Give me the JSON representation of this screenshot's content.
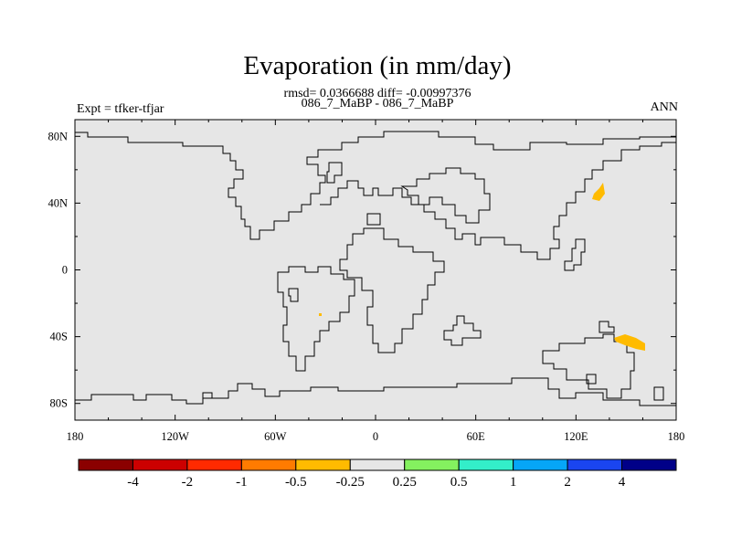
{
  "header": {
    "title": "Evaporation (in mm/day)",
    "stats": "rmsd= 0.0366688 diff= -0.00997376",
    "cases": "086_7_MaBP - 086_7_MaBP",
    "left_label": "Expt = tfker-tfjar",
    "right_label": "ANN"
  },
  "map": {
    "projection": "cylindrical equidistant",
    "lon_range": [
      -180,
      180
    ],
    "lat_range": [
      -90,
      90
    ],
    "x_ticks": [
      {
        "lon": -180,
        "label": "180"
      },
      {
        "lon": -120,
        "label": "120W"
      },
      {
        "lon": -60,
        "label": "60W"
      },
      {
        "lon": 0,
        "label": "0"
      },
      {
        "lon": 60,
        "label": "60E"
      },
      {
        "lon": 120,
        "label": "120E"
      },
      {
        "lon": 180,
        "label": "180"
      }
    ],
    "y_ticks": [
      {
        "lat": 80,
        "label": "80N"
      },
      {
        "lat": 40,
        "label": "40N"
      },
      {
        "lat": 0,
        "label": "0"
      },
      {
        "lat": -40,
        "label": "40S"
      },
      {
        "lat": -80,
        "label": "80S"
      }
    ],
    "background_color": "#e6e6e6",
    "coastline_color": "#000000",
    "highlight_regions": [
      {
        "color": "#ffbb00",
        "value_bin": "-0.5 to -0.25",
        "area": "near 135E, 45N"
      },
      {
        "color": "#ffbb00",
        "value_bin": "-0.5 to -0.25",
        "area": "near 150E, 42S"
      },
      {
        "color": "#ffbb00",
        "value_bin": "-0.5 to -0.25",
        "area": "near 35W, 27S"
      }
    ]
  },
  "colorbar": {
    "colors": [
      "#8b0000",
      "#cc0000",
      "#ff2a00",
      "#ff7b00",
      "#ffbb00",
      "#e6e6e6",
      "#84f15f",
      "#33eec9",
      "#06a6f7",
      "#1a45f0",
      "#000088"
    ],
    "labels": [
      "-4",
      "-2",
      "-1",
      "-0.5",
      "-0.25",
      "0.25",
      "0.5",
      "1",
      "2",
      "4"
    ]
  }
}
